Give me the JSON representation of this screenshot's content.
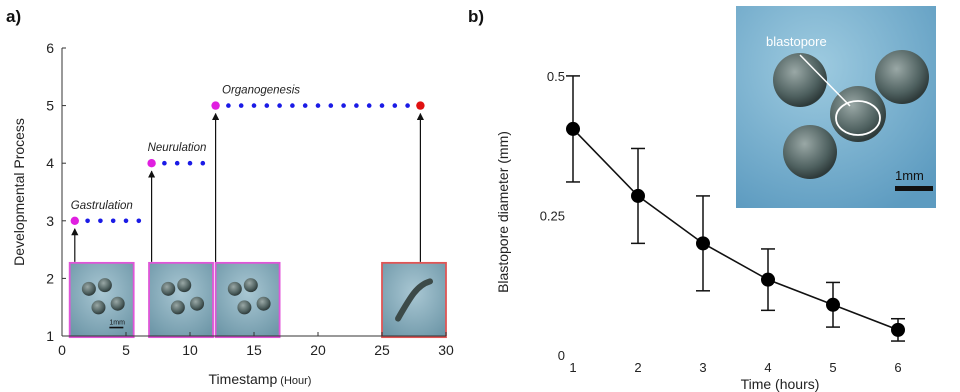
{
  "panel_a": {
    "label": "a)",
    "ylabel": "Developmental Process",
    "xlabel_main": "Timestamp",
    "xlabel_unit": " (Hour)",
    "stages": [
      {
        "name": "Gastrulation",
        "level": 3,
        "start": 1,
        "end": 6
      },
      {
        "name": "Neurulation",
        "level": 4,
        "start": 7,
        "end": 11.5
      },
      {
        "name": "Organogenesis",
        "level": 5,
        "start": 12,
        "end": 28
      }
    ],
    "images": [
      {
        "start": 0.6,
        "end": 5.6,
        "border": "#e055d8",
        "scale_label": "1mm"
      },
      {
        "start": 6.8,
        "end": 11.8,
        "border": "#e055d8"
      },
      {
        "start": 12,
        "end": 17,
        "border": "#e055d8"
      },
      {
        "start": 25,
        "end": 30,
        "border": "#e05555"
      }
    ],
    "colors": {
      "start_dot": "#e01fe0",
      "end_dot": "#e01010",
      "dots": "#1a1ae6"
    }
  },
  "panel_b": {
    "label": "b)",
    "inset_label": "blastopore",
    "inset_scale": "1mm"
  },
  "chart_data": [
    {
      "type": "scatter",
      "title": "",
      "xlabel": "Timestamp (Hour)",
      "ylabel": "Developmental Process",
      "xlim": [
        0,
        30
      ],
      "ylim": [
        1,
        6
      ],
      "xticks": [
        0,
        5,
        10,
        15,
        20,
        25,
        30
      ],
      "yticks": [
        1,
        2,
        3,
        4,
        5,
        6
      ],
      "grid": false,
      "series": [
        {
          "name": "Gastrulation",
          "x": [
            1,
            2,
            3,
            4,
            5,
            6
          ],
          "y": [
            3,
            3,
            3,
            3,
            3,
            3
          ]
        },
        {
          "name": "Neurulation",
          "x": [
            7,
            8,
            9,
            10,
            11
          ],
          "y": [
            4,
            4,
            4,
            4,
            4
          ]
        },
        {
          "name": "Organogenesis",
          "x": [
            12,
            13,
            14,
            15,
            16,
            17,
            18,
            19,
            20,
            21,
            22,
            23,
            24,
            25,
            26,
            27,
            28
          ],
          "y": [
            5,
            5,
            5,
            5,
            5,
            5,
            5,
            5,
            5,
            5,
            5,
            5,
            5,
            5,
            5,
            5,
            5
          ]
        }
      ]
    },
    {
      "type": "line",
      "title": "",
      "xlabel": "Time (hours)",
      "ylabel": "Blastopore diameter (mm)",
      "xlim": [
        0.8,
        6.8
      ],
      "ylim": [
        0,
        0.55
      ],
      "xticks": [
        1,
        2,
        3,
        4,
        5,
        6
      ],
      "yticks": [
        0,
        0.25,
        0.5
      ],
      "ytick_labels": [
        "0",
        "0.25",
        "0.5"
      ],
      "grid": false,
      "series": [
        {
          "x": [
            1,
            2,
            3,
            4,
            5,
            6
          ],
          "values": [
            0.405,
            0.285,
            0.2,
            0.135,
            0.09,
            0.045
          ],
          "error": [
            0.095,
            0.085,
            0.085,
            0.055,
            0.04,
            0.02
          ]
        }
      ]
    }
  ]
}
